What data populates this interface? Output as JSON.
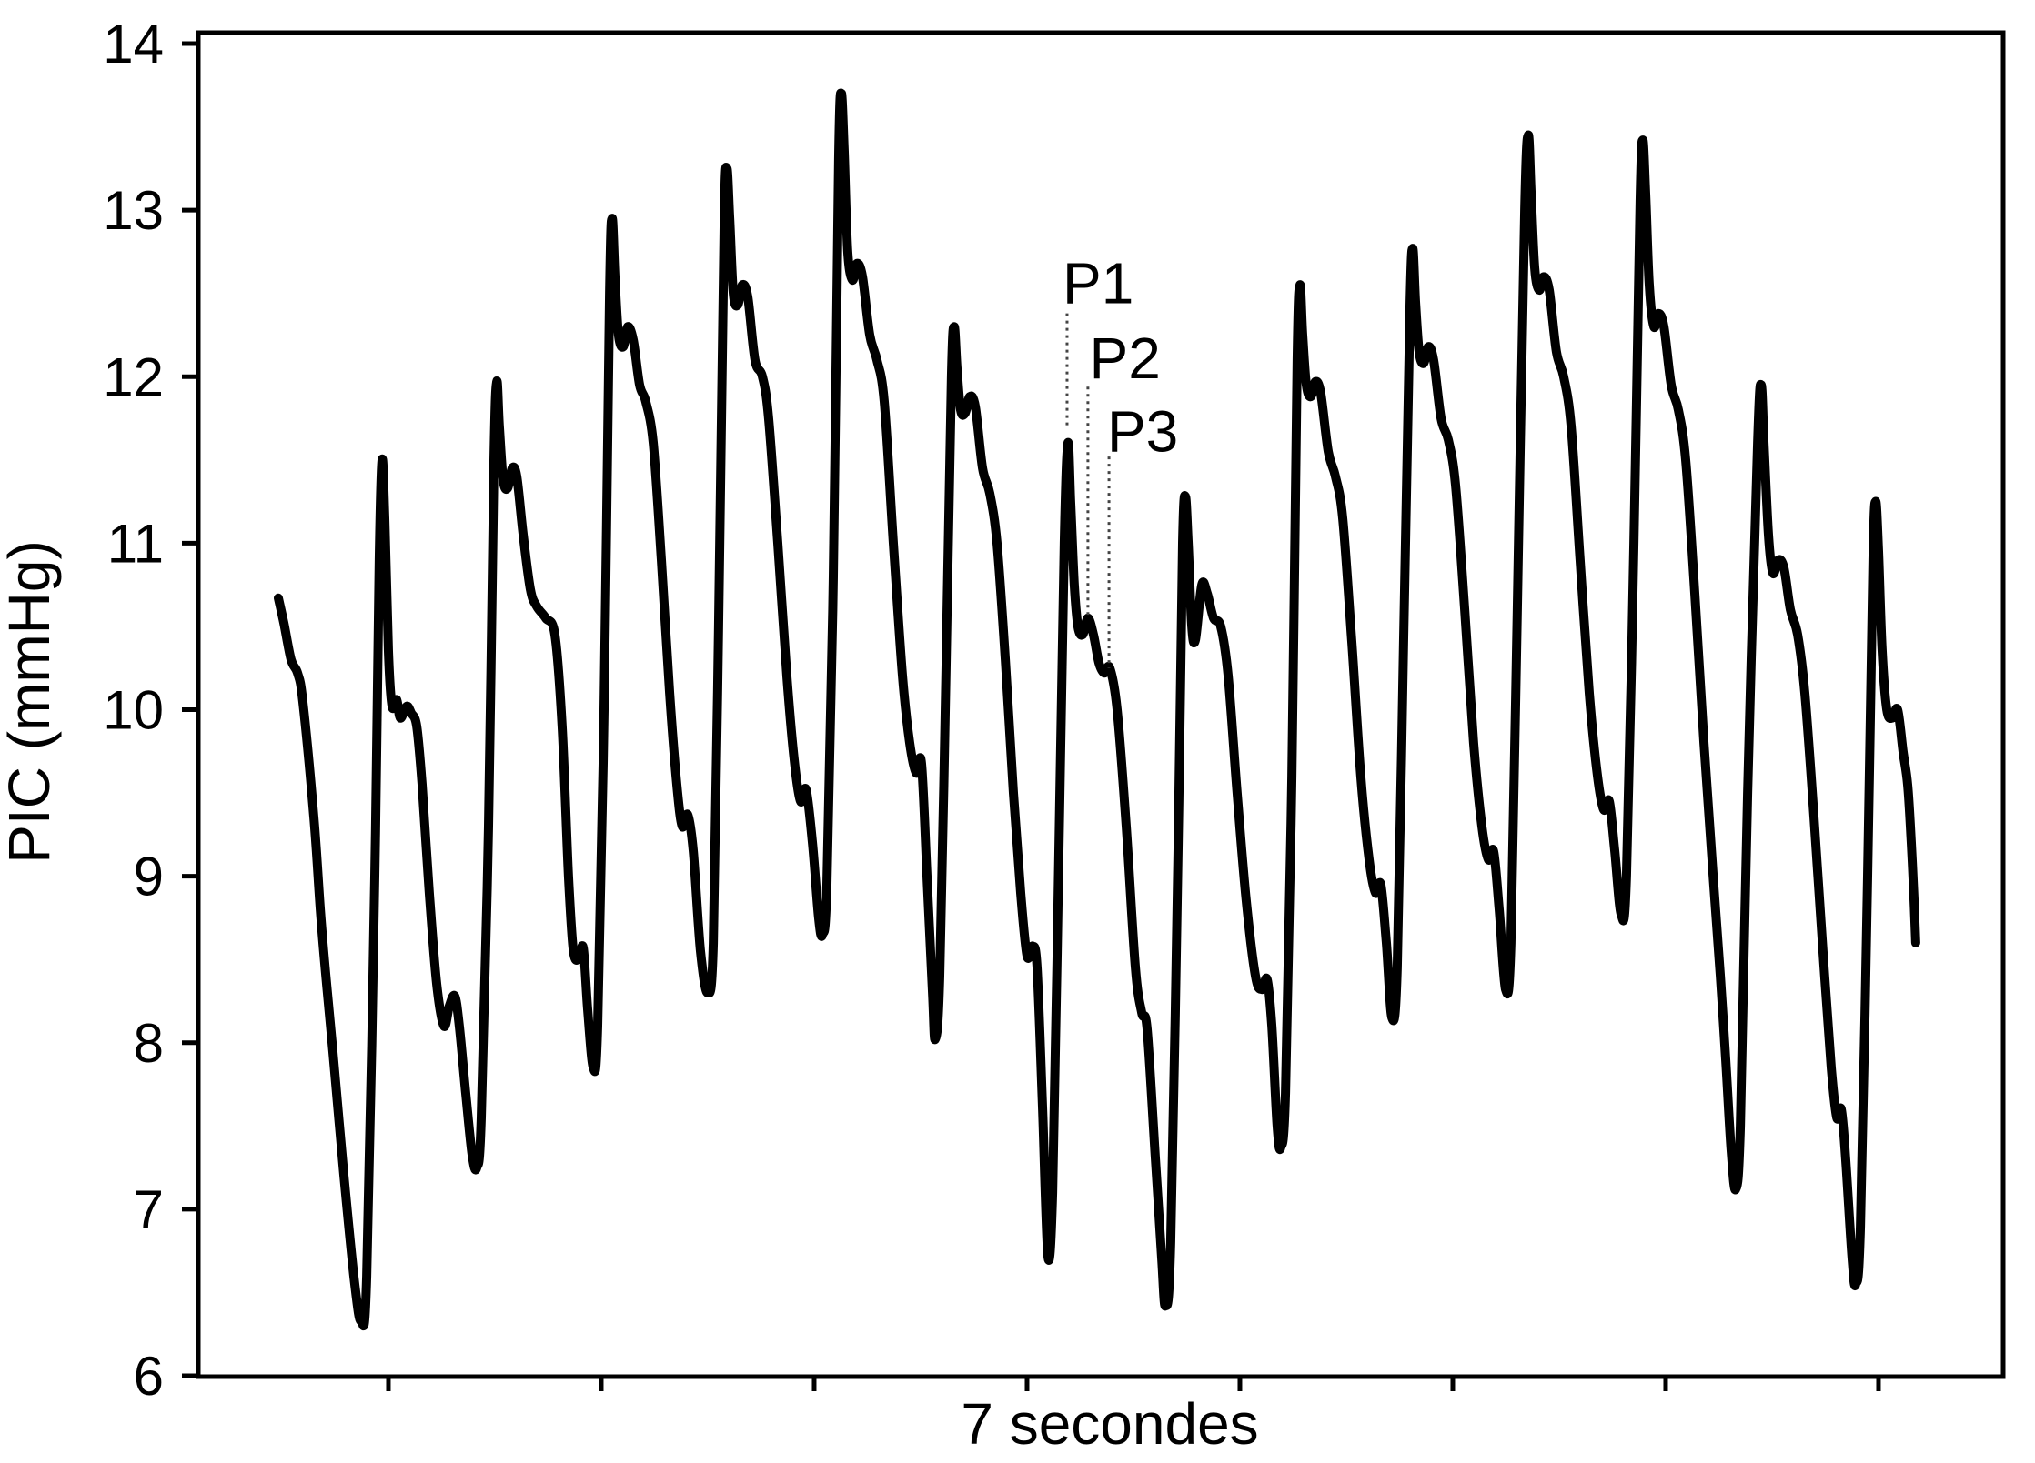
{
  "chart_data": {
    "type": "line",
    "title": "",
    "xlabel": "7 secondes",
    "ylabel": "PIC (mmHg)",
    "ylim": [
      6,
      14
    ],
    "yticks": [
      6,
      7,
      8,
      9,
      10,
      11,
      12,
      13,
      14
    ],
    "x_unit": "seconds",
    "xticks_s": [
      0.517,
      1.517,
      2.517,
      3.517,
      4.517,
      5.517,
      6.517,
      7.517
    ],
    "x_tick_labels": [],
    "grid": false,
    "legend": null,
    "line_color": "#000000",
    "background": "#ffffff",
    "series": [
      {
        "name": "PIC",
        "points": [
          [
            0.0,
            10.67
          ],
          [
            0.026,
            10.52
          ],
          [
            0.06,
            10.3
          ],
          [
            0.09,
            10.22
          ],
          [
            0.115,
            10.05
          ],
          [
            0.167,
            9.35
          ],
          [
            0.197,
            8.8
          ],
          [
            0.222,
            8.42
          ],
          [
            0.256,
            7.95
          ],
          [
            0.308,
            7.2
          ],
          [
            0.359,
            6.55
          ],
          [
            0.389,
            6.33
          ],
          [
            0.415,
            6.6
          ],
          [
            0.453,
            9.0
          ],
          [
            0.474,
            10.9
          ],
          [
            0.487,
            11.5
          ],
          [
            0.5,
            11.15
          ],
          [
            0.517,
            10.35
          ],
          [
            0.534,
            10.02
          ],
          [
            0.556,
            10.06
          ],
          [
            0.573,
            9.95
          ],
          [
            0.603,
            10.02
          ],
          [
            0.624,
            9.98
          ],
          [
            0.65,
            9.9
          ],
          [
            0.675,
            9.55
          ],
          [
            0.709,
            8.9
          ],
          [
            0.744,
            8.35
          ],
          [
            0.778,
            8.1
          ],
          [
            0.803,
            8.22
          ],
          [
            0.829,
            8.28
          ],
          [
            0.85,
            8.1
          ],
          [
            0.88,
            7.7
          ],
          [
            0.91,
            7.33
          ],
          [
            0.932,
            7.25
          ],
          [
            0.953,
            7.55
          ],
          [
            0.987,
            9.3
          ],
          [
            1.013,
            11.5
          ],
          [
            1.026,
            11.97
          ],
          [
            1.038,
            11.7
          ],
          [
            1.056,
            11.38
          ],
          [
            1.077,
            11.33
          ],
          [
            1.098,
            11.45
          ],
          [
            1.12,
            11.4
          ],
          [
            1.15,
            11.05
          ],
          [
            1.184,
            10.72
          ],
          [
            1.214,
            10.62
          ],
          [
            1.256,
            10.55
          ],
          [
            1.299,
            10.45
          ],
          [
            1.333,
            9.9
          ],
          [
            1.363,
            9.0
          ],
          [
            1.385,
            8.56
          ],
          [
            1.41,
            8.5
          ],
          [
            1.432,
            8.57
          ],
          [
            1.453,
            8.2
          ],
          [
            1.479,
            7.85
          ],
          [
            1.5,
            8.1
          ],
          [
            1.53,
            10.0
          ],
          [
            1.556,
            12.5
          ],
          [
            1.568,
            12.95
          ],
          [
            1.581,
            12.6
          ],
          [
            1.598,
            12.25
          ],
          [
            1.62,
            12.18
          ],
          [
            1.641,
            12.3
          ],
          [
            1.667,
            12.22
          ],
          [
            1.697,
            11.95
          ],
          [
            1.726,
            11.85
          ],
          [
            1.761,
            11.6
          ],
          [
            1.799,
            10.9
          ],
          [
            1.838,
            10.1
          ],
          [
            1.872,
            9.55
          ],
          [
            1.897,
            9.3
          ],
          [
            1.923,
            9.37
          ],
          [
            1.949,
            9.15
          ],
          [
            1.983,
            8.55
          ],
          [
            2.017,
            8.3
          ],
          [
            2.043,
            8.6
          ],
          [
            2.068,
            10.5
          ],
          [
            2.094,
            12.9
          ],
          [
            2.107,
            13.25
          ],
          [
            2.12,
            12.95
          ],
          [
            2.137,
            12.5
          ],
          [
            2.158,
            12.43
          ],
          [
            2.179,
            12.55
          ],
          [
            2.205,
            12.48
          ],
          [
            2.239,
            12.1
          ],
          [
            2.274,
            12.0
          ],
          [
            2.303,
            11.75
          ],
          [
            2.346,
            11.0
          ],
          [
            2.389,
            10.2
          ],
          [
            2.423,
            9.7
          ],
          [
            2.453,
            9.45
          ],
          [
            2.479,
            9.52
          ],
          [
            2.509,
            9.2
          ],
          [
            2.538,
            8.75
          ],
          [
            2.556,
            8.65
          ],
          [
            2.577,
            8.95
          ],
          [
            2.607,
            10.8
          ],
          [
            2.632,
            13.3
          ],
          [
            2.645,
            13.7
          ],
          [
            2.658,
            13.35
          ],
          [
            2.675,
            12.75
          ],
          [
            2.697,
            12.58
          ],
          [
            2.718,
            12.68
          ],
          [
            2.744,
            12.6
          ],
          [
            2.778,
            12.25
          ],
          [
            2.812,
            12.1
          ],
          [
            2.846,
            11.85
          ],
          [
            2.889,
            11.0
          ],
          [
            2.932,
            10.2
          ],
          [
            2.966,
            9.8
          ],
          [
            2.996,
            9.62
          ],
          [
            3.021,
            9.68
          ],
          [
            3.047,
            9.0
          ],
          [
            3.073,
            8.3
          ],
          [
            3.085,
            8.02
          ],
          [
            3.107,
            8.4
          ],
          [
            3.137,
            10.3
          ],
          [
            3.162,
            12.0
          ],
          [
            3.175,
            12.3
          ],
          [
            3.188,
            12.05
          ],
          [
            3.205,
            11.8
          ],
          [
            3.226,
            11.78
          ],
          [
            3.248,
            11.88
          ],
          [
            3.274,
            11.82
          ],
          [
            3.308,
            11.45
          ],
          [
            3.342,
            11.3
          ],
          [
            3.376,
            11.0
          ],
          [
            3.415,
            10.3
          ],
          [
            3.453,
            9.5
          ],
          [
            3.487,
            8.9
          ],
          [
            3.517,
            8.52
          ],
          [
            3.543,
            8.58
          ],
          [
            3.564,
            8.45
          ],
          [
            3.59,
            7.6
          ],
          [
            3.615,
            6.72
          ],
          [
            3.637,
            7.1
          ],
          [
            3.662,
            8.8
          ],
          [
            3.692,
            11.0
          ],
          [
            3.709,
            11.6
          ],
          [
            3.722,
            11.25
          ],
          [
            3.739,
            10.75
          ],
          [
            3.756,
            10.5
          ],
          [
            3.778,
            10.45
          ],
          [
            3.803,
            10.55
          ],
          [
            3.829,
            10.45
          ],
          [
            3.855,
            10.28
          ],
          [
            3.88,
            10.22
          ],
          [
            3.906,
            10.25
          ],
          [
            3.94,
            10.0
          ],
          [
            3.983,
            9.3
          ],
          [
            4.026,
            8.45
          ],
          [
            4.056,
            8.18
          ],
          [
            4.081,
            8.08
          ],
          [
            4.12,
            7.3
          ],
          [
            4.15,
            6.7
          ],
          [
            4.167,
            6.42
          ],
          [
            4.192,
            6.8
          ],
          [
            4.227,
            9.2
          ],
          [
            4.248,
            11.0
          ],
          [
            4.261,
            11.28
          ],
          [
            4.274,
            11.0
          ],
          [
            4.291,
            10.5
          ],
          [
            4.308,
            10.42
          ],
          [
            4.338,
            10.75
          ],
          [
            4.363,
            10.7
          ],
          [
            4.393,
            10.55
          ],
          [
            4.427,
            10.5
          ],
          [
            4.462,
            10.2
          ],
          [
            4.504,
            9.5
          ],
          [
            4.547,
            8.85
          ],
          [
            4.59,
            8.4
          ],
          [
            4.62,
            8.32
          ],
          [
            4.645,
            8.38
          ],
          [
            4.667,
            8.1
          ],
          [
            4.692,
            7.5
          ],
          [
            4.709,
            7.37
          ],
          [
            4.731,
            7.7
          ],
          [
            4.761,
            9.6
          ],
          [
            4.786,
            12.1
          ],
          [
            4.799,
            12.55
          ],
          [
            4.812,
            12.25
          ],
          [
            4.829,
            11.95
          ],
          [
            4.85,
            11.88
          ],
          [
            4.872,
            11.97
          ],
          [
            4.897,
            11.9
          ],
          [
            4.932,
            11.55
          ],
          [
            4.966,
            11.4
          ],
          [
            5.0,
            11.15
          ],
          [
            5.043,
            10.4
          ],
          [
            5.085,
            9.6
          ],
          [
            5.124,
            9.1
          ],
          [
            5.154,
            8.9
          ],
          [
            5.179,
            8.95
          ],
          [
            5.205,
            8.6
          ],
          [
            5.231,
            8.15
          ],
          [
            5.256,
            8.45
          ],
          [
            5.286,
            10.4
          ],
          [
            5.316,
            12.4
          ],
          [
            5.329,
            12.77
          ],
          [
            5.342,
            12.45
          ],
          [
            5.359,
            12.15
          ],
          [
            5.38,
            12.08
          ],
          [
            5.402,
            12.18
          ],
          [
            5.427,
            12.1
          ],
          [
            5.462,
            11.75
          ],
          [
            5.496,
            11.62
          ],
          [
            5.53,
            11.35
          ],
          [
            5.573,
            10.6
          ],
          [
            5.615,
            9.8
          ],
          [
            5.654,
            9.3
          ],
          [
            5.684,
            9.1
          ],
          [
            5.709,
            9.15
          ],
          [
            5.735,
            8.8
          ],
          [
            5.765,
            8.32
          ],
          [
            5.79,
            8.6
          ],
          [
            5.82,
            10.6
          ],
          [
            5.855,
            13.0
          ],
          [
            5.872,
            13.45
          ],
          [
            5.885,
            13.1
          ],
          [
            5.902,
            12.65
          ],
          [
            5.923,
            12.52
          ],
          [
            5.944,
            12.6
          ],
          [
            5.97,
            12.52
          ],
          [
            6.004,
            12.15
          ],
          [
            6.038,
            12.0
          ],
          [
            6.073,
            11.7
          ],
          [
            6.115,
            10.9
          ],
          [
            6.158,
            10.1
          ],
          [
            6.197,
            9.6
          ],
          [
            6.226,
            9.4
          ],
          [
            6.252,
            9.45
          ],
          [
            6.278,
            9.15
          ],
          [
            6.308,
            8.77
          ],
          [
            6.333,
            9.0
          ],
          [
            6.368,
            11.0
          ],
          [
            6.397,
            13.05
          ],
          [
            6.41,
            13.42
          ],
          [
            6.423,
            13.1
          ],
          [
            6.44,
            12.55
          ],
          [
            6.462,
            12.3
          ],
          [
            6.483,
            12.38
          ],
          [
            6.509,
            12.3
          ],
          [
            6.543,
            11.95
          ],
          [
            6.577,
            11.8
          ],
          [
            6.611,
            11.5
          ],
          [
            6.654,
            10.7
          ],
          [
            6.697,
            9.8
          ],
          [
            6.74,
            9.0
          ],
          [
            6.774,
            8.4
          ],
          [
            6.799,
            7.9
          ],
          [
            6.825,
            7.35
          ],
          [
            6.846,
            7.12
          ],
          [
            6.868,
            7.5
          ],
          [
            6.902,
            9.5
          ],
          [
            6.949,
            11.6
          ],
          [
            6.966,
            11.95
          ],
          [
            6.979,
            11.6
          ],
          [
            7.0,
            11.05
          ],
          [
            7.021,
            10.82
          ],
          [
            7.047,
            10.9
          ],
          [
            7.073,
            10.85
          ],
          [
            7.103,
            10.6
          ],
          [
            7.137,
            10.45
          ],
          [
            7.171,
            10.1
          ],
          [
            7.214,
            9.35
          ],
          [
            7.256,
            8.55
          ],
          [
            7.295,
            7.85
          ],
          [
            7.321,
            7.55
          ],
          [
            7.342,
            7.6
          ],
          [
            7.363,
            7.3
          ],
          [
            7.393,
            6.7
          ],
          [
            7.41,
            6.55
          ],
          [
            7.432,
            6.9
          ],
          [
            7.466,
            9.0
          ],
          [
            7.491,
            10.9
          ],
          [
            7.504,
            11.25
          ],
          [
            7.517,
            10.95
          ],
          [
            7.534,
            10.35
          ],
          [
            7.556,
            10.0
          ],
          [
            7.581,
            9.95
          ],
          [
            7.607,
            10.0
          ],
          [
            7.632,
            9.75
          ],
          [
            7.654,
            9.55
          ],
          [
            7.671,
            9.2
          ],
          [
            7.684,
            8.85
          ],
          [
            7.692,
            8.6
          ]
        ]
      }
    ],
    "annotations": [
      {
        "label": "P1",
        "x_s": 3.705,
        "line_v_top": 12.38,
        "line_v_bottom": 11.69,
        "label_x_s": 3.684,
        "label_v": 12.44
      },
      {
        "label": "P2",
        "x_s": 3.803,
        "line_v_top": 11.94,
        "line_v_bottom": 10.57,
        "label_x_s": 3.81,
        "label_v": 11.99
      },
      {
        "label": "P3",
        "x_s": 3.902,
        "line_v_top": 11.52,
        "line_v_bottom": 10.25,
        "label_x_s": 3.893,
        "label_v": 11.55
      }
    ]
  }
}
